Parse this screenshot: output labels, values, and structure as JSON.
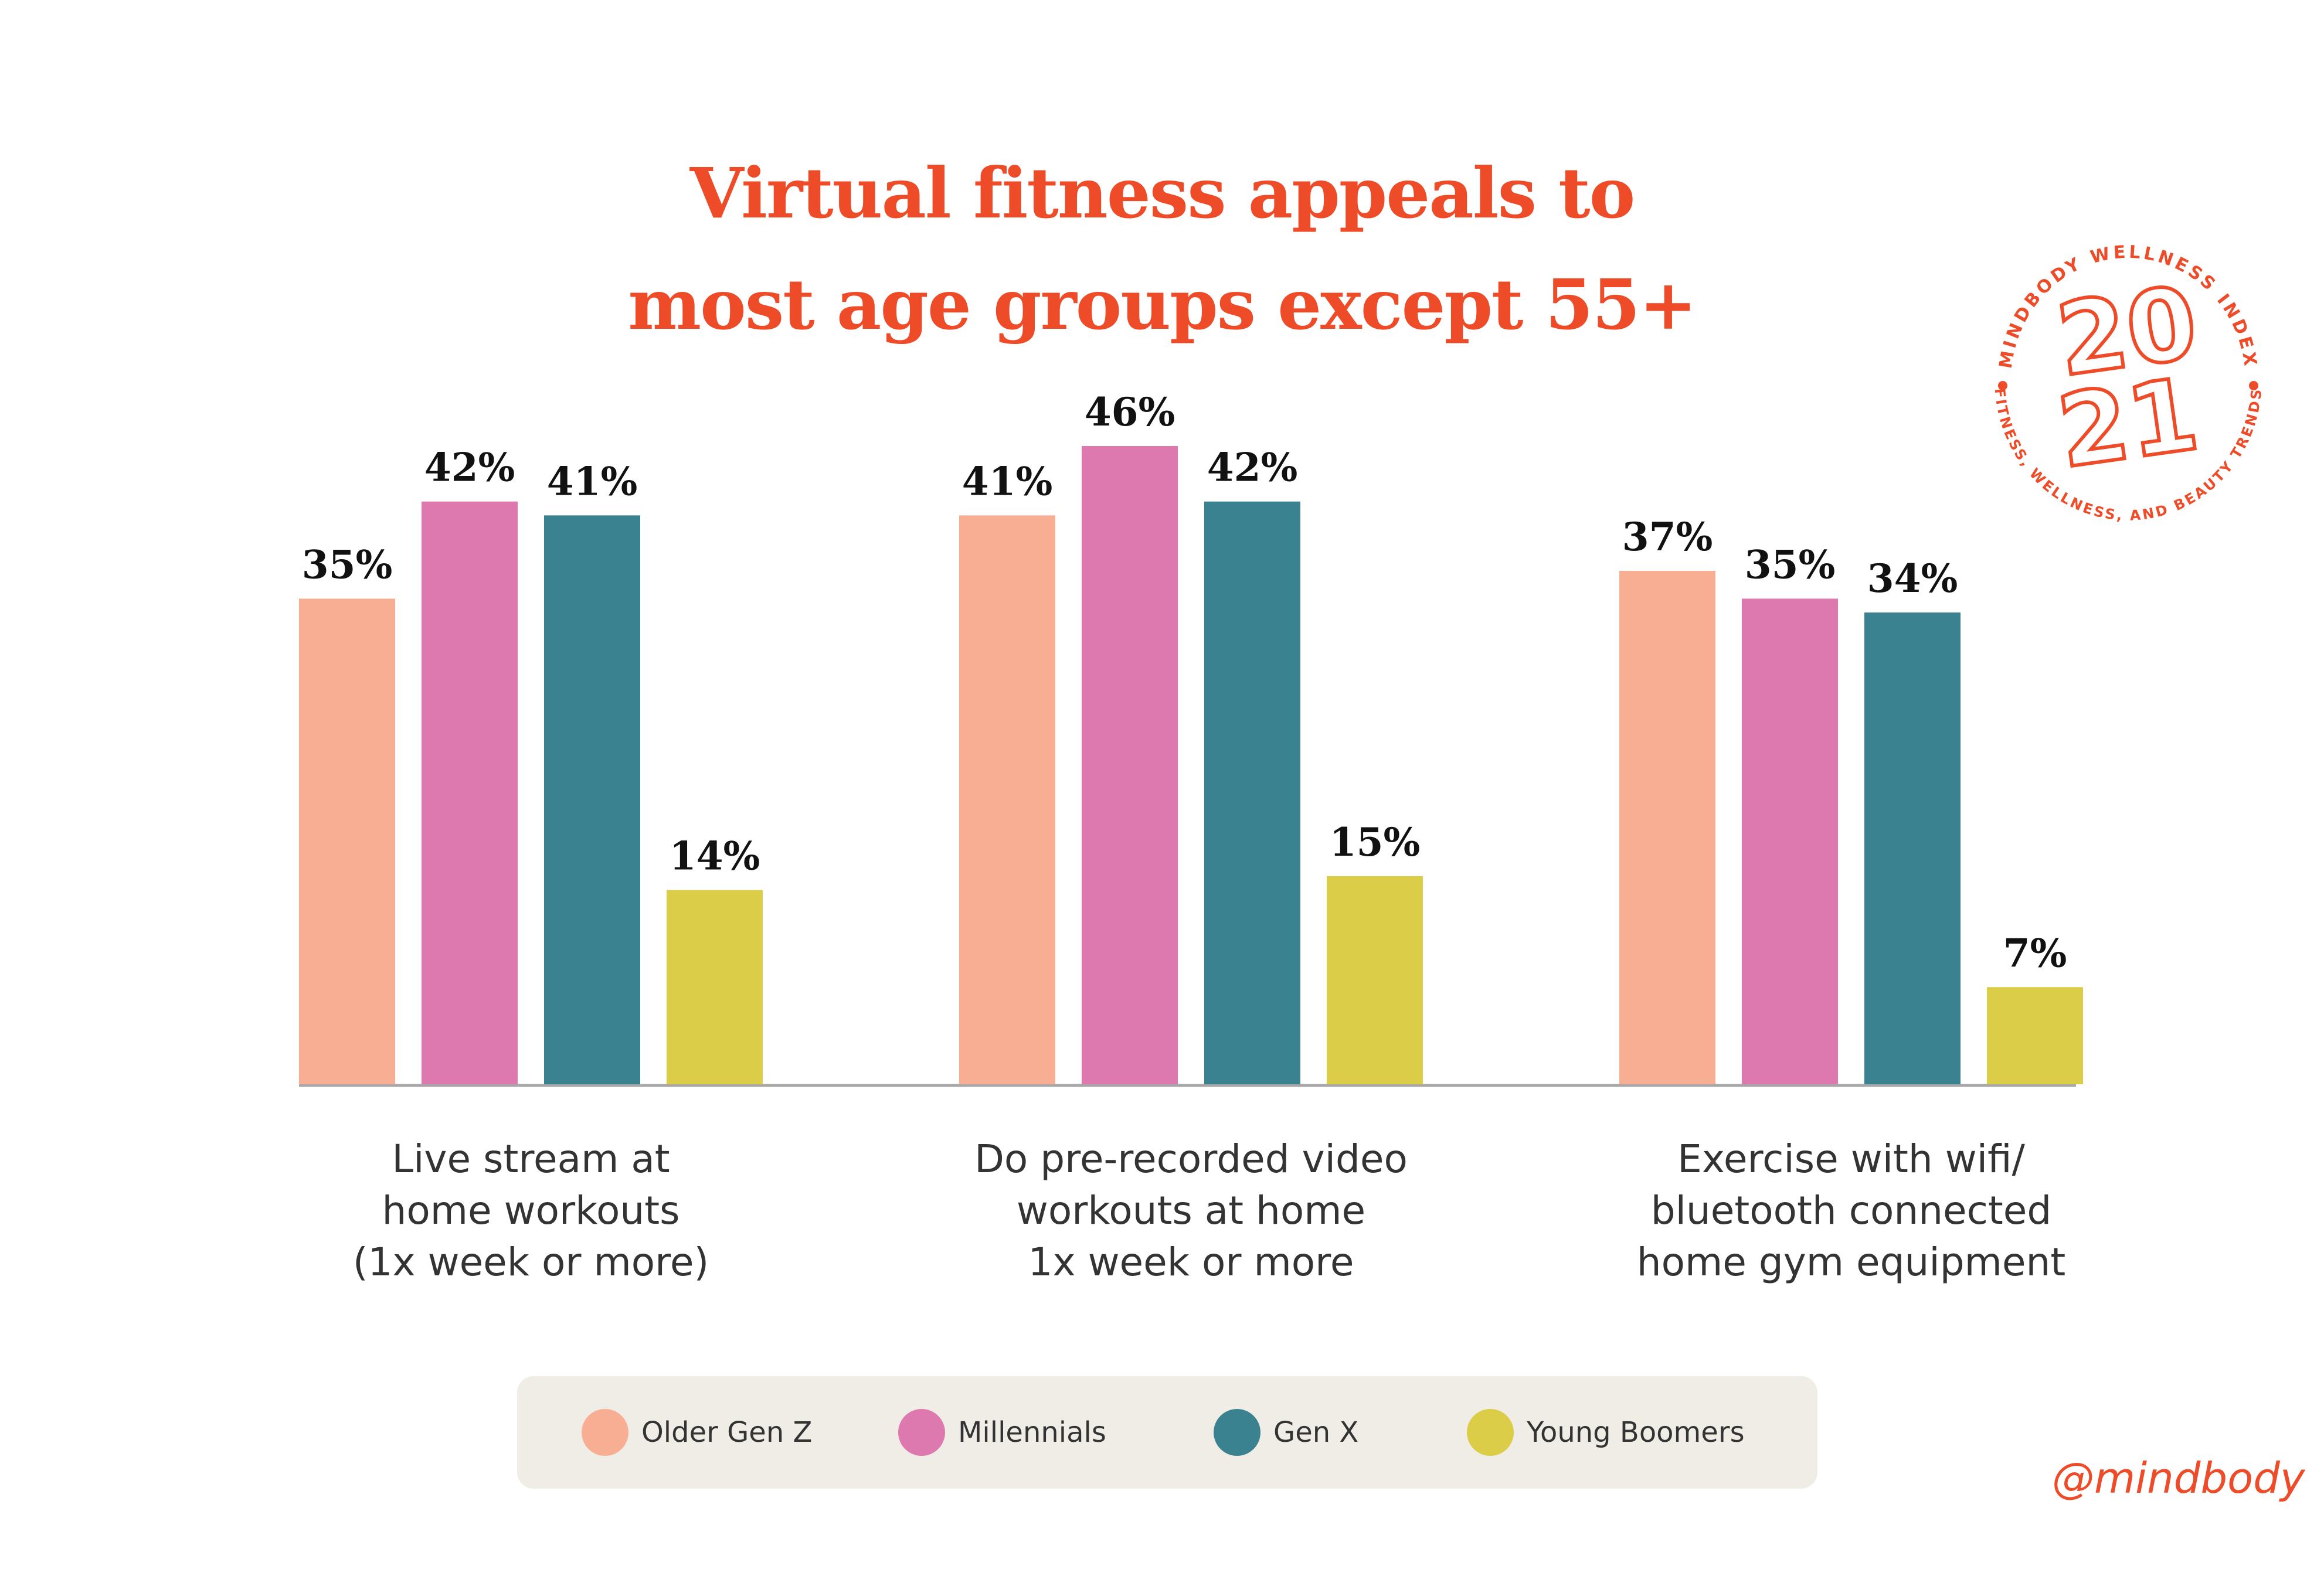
{
  "title": {
    "line1": "Virtual fitness appeals to",
    "line2": "most age groups except 55+"
  },
  "badge": {
    "top_text": "MINDBODY WELLNESS INDEX",
    "bottom_text": "FITNESS, WELLNESS, AND BEAUTY TRENDS",
    "year_line1": "20",
    "year_line2": "21"
  },
  "handle": "@mindbody",
  "colors": {
    "accent": "#ee4b28",
    "older_gen_z": "#f8ae93",
    "millennials": "#de79b0",
    "gen_x": "#3b8290",
    "young_boomers": "#dbcd48",
    "legend_bg": "#efede6",
    "axis": "#a8a8a8"
  },
  "chart_data": {
    "type": "bar",
    "title": "Virtual fitness appeals to most age groups except 55+",
    "xlabel": "",
    "ylabel": "",
    "ylim": [
      0,
      46
    ],
    "grid": false,
    "legend_position": "bottom",
    "value_suffix": "%",
    "categories": [
      [
        "Live stream at",
        "home workouts",
        "(1x week or more)"
      ],
      [
        "Do pre-recorded video",
        "workouts at home",
        "1x week or more"
      ],
      [
        "Exercise with wifi/",
        "bluetooth connected",
        "home gym equipment"
      ]
    ],
    "series": [
      {
        "name": "Older Gen Z",
        "color": "#f8ae93",
        "values": [
          35,
          41,
          37
        ]
      },
      {
        "name": "Millennials",
        "color": "#de79b0",
        "values": [
          42,
          46,
          35
        ]
      },
      {
        "name": "Gen X",
        "color": "#3b8290",
        "values": [
          41,
          42,
          34
        ]
      },
      {
        "name": "Young Boomers",
        "color": "#dbcd48",
        "values": [
          14,
          15,
          7
        ]
      }
    ]
  }
}
